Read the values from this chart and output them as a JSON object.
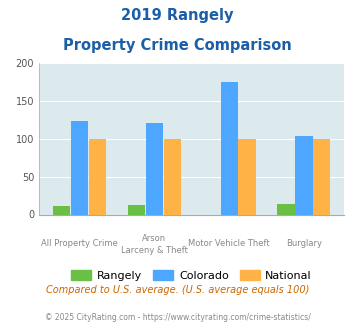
{
  "title_line1": "2019 Rangely",
  "title_line2": "Property Crime Comparison",
  "cat_labels_row1": [
    "All Property Crime",
    "Arson",
    "Motor Vehicle Theft",
    "Burglary"
  ],
  "cat_labels_row2": [
    "",
    "Larceny & Theft",
    "",
    ""
  ],
  "rangely_values": [
    11,
    12,
    0,
    14
  ],
  "colorado_values": [
    123,
    120,
    175,
    103
  ],
  "national_values": [
    100,
    100,
    100,
    100
  ],
  "rangely_color": "#6abf45",
  "colorado_color": "#4da6ff",
  "national_color": "#ffb347",
  "bg_color": "#dce9ed",
  "title_color": "#1a5fa8",
  "label_color": "#888888",
  "ylim": [
    0,
    200
  ],
  "yticks": [
    0,
    50,
    100,
    150,
    200
  ],
  "legend_labels": [
    "Rangely",
    "Colorado",
    "National"
  ],
  "footnote1": "Compared to U.S. average. (U.S. average equals 100)",
  "footnote2": "© 2025 CityRating.com - https://www.cityrating.com/crime-statistics/",
  "footnote1_color": "#cc6600",
  "footnote2_color": "#888888"
}
